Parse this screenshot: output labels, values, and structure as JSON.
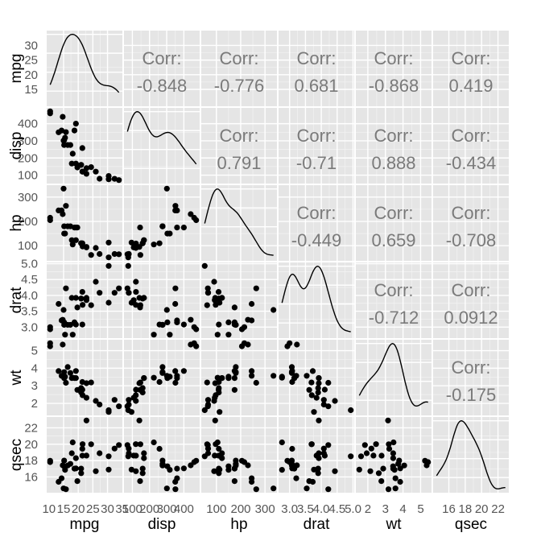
{
  "chart_data": {
    "type": "scatter-matrix",
    "variables": [
      "mpg",
      "disp",
      "hp",
      "drat",
      "wt",
      "qsec"
    ],
    "ranges": {
      "mpg": [
        10.4,
        33.9
      ],
      "disp": [
        71.1,
        472
      ],
      "hp": [
        52,
        335
      ],
      "drat": [
        2.76,
        4.93
      ],
      "wt": [
        1.513,
        5.424
      ],
      "qsec": [
        14.5,
        22.9
      ]
    },
    "ticks": {
      "mpg": [
        15,
        20,
        25,
        30
      ],
      "disp": [
        100,
        200,
        300,
        400
      ],
      "hp": [
        100,
        200,
        300
      ],
      "drat": [
        3.0,
        3.5,
        4.0,
        4.5,
        5.0
      ],
      "wt": [
        2,
        3,
        4,
        5
      ],
      "qsec": [
        16,
        18,
        20,
        22
      ]
    },
    "bottom_tick_labels": {
      "mpg": [
        "10",
        "15",
        "20",
        "25",
        "30",
        "35"
      ],
      "disp": [
        "100",
        "200",
        "300",
        "400"
      ],
      "hp": [
        "100",
        "200",
        "300"
      ],
      "drat": [
        "3.0",
        "3.5",
        "4.0",
        "4.5",
        "5.0"
      ],
      "wt": [
        "2",
        "3",
        "4",
        "5"
      ],
      "qsec": [
        "16",
        "18",
        "20",
        "22"
      ]
    },
    "left_tick_labels": {
      "mpg": [
        "15",
        "20",
        "25",
        "30"
      ],
      "disp": [
        "100",
        "200",
        "300",
        "400"
      ],
      "hp": [
        "100",
        "200",
        "300"
      ],
      "drat": [
        "3.0",
        "3.5",
        "4.0",
        "4.5",
        "5.0"
      ],
      "wt": [
        "2",
        "3",
        "4",
        "5"
      ],
      "qsec": [
        "16",
        "18",
        "20",
        "22"
      ]
    },
    "correlations": {
      "mpg|disp": "-0.848",
      "mpg|hp": "-0.776",
      "mpg|drat": "0.681",
      "mpg|wt": "-0.868",
      "mpg|qsec": "0.419",
      "disp|hp": "0.791",
      "disp|drat": "-0.71",
      "disp|wt": "0.888",
      "disp|qsec": "-0.434",
      "hp|drat": "-0.449",
      "hp|wt": "0.659",
      "hp|qsec": "-0.708",
      "drat|wt": "-0.712",
      "drat|qsec": "0.0912",
      "wt|qsec": "-0.175"
    },
    "corr_prefix": "Corr:",
    "observations": {
      "mpg": [
        21,
        21,
        22.8,
        21.4,
        18.7,
        18.1,
        14.3,
        24.4,
        22.8,
        19.2,
        17.8,
        16.4,
        17.3,
        15.2,
        10.4,
        10.4,
        14.7,
        32.4,
        30.4,
        33.9,
        21.5,
        15.5,
        15.2,
        13.3,
        19.2,
        27.3,
        26,
        30.4,
        15.8,
        19.7,
        15,
        21.4
      ],
      "disp": [
        160,
        160,
        108,
        258,
        360,
        225,
        360,
        146.7,
        140.8,
        167.6,
        167.6,
        275.8,
        275.8,
        275.8,
        472,
        460,
        440,
        78.7,
        75.7,
        71.1,
        120.1,
        318,
        304,
        350,
        400,
        79,
        120.3,
        95.1,
        351,
        145,
        301,
        121
      ],
      "hp": [
        110,
        110,
        93,
        110,
        175,
        105,
        245,
        62,
        95,
        123,
        123,
        180,
        180,
        180,
        205,
        215,
        230,
        66,
        52,
        65,
        97,
        150,
        150,
        245,
        175,
        66,
        91,
        113,
        264,
        175,
        335,
        109
      ],
      "drat": [
        3.9,
        3.9,
        3.85,
        3.08,
        3.15,
        2.76,
        3.21,
        3.69,
        3.92,
        3.92,
        3.92,
        3.07,
        3.07,
        3.07,
        2.93,
        3,
        3.23,
        4.08,
        4.93,
        4.22,
        3.7,
        2.76,
        3.15,
        3.73,
        3.08,
        4.08,
        4.43,
        3.77,
        4.22,
        3.62,
        3.54,
        4.11
      ],
      "wt": [
        2.62,
        2.875,
        2.32,
        3.215,
        3.44,
        3.46,
        3.57,
        3.19,
        3.15,
        3.44,
        3.44,
        4.07,
        3.73,
        3.78,
        5.25,
        5.424,
        5.345,
        2.2,
        1.615,
        1.835,
        2.465,
        3.52,
        3.435,
        3.84,
        3.845,
        1.935,
        2.14,
        1.513,
        3.17,
        2.77,
        3.57,
        2.78
      ],
      "qsec": [
        16.46,
        17.02,
        18.61,
        19.44,
        17.02,
        20.22,
        15.84,
        20,
        22.9,
        18.3,
        18.9,
        17.4,
        17.6,
        18,
        17.98,
        17.82,
        17.42,
        19.47,
        18.52,
        19.9,
        20.01,
        16.87,
        17.3,
        15.41,
        17.05,
        18.9,
        16.7,
        16.9,
        14.5,
        15.5,
        14.6,
        18.6
      ]
    },
    "diagonal": "density",
    "grid": true
  }
}
